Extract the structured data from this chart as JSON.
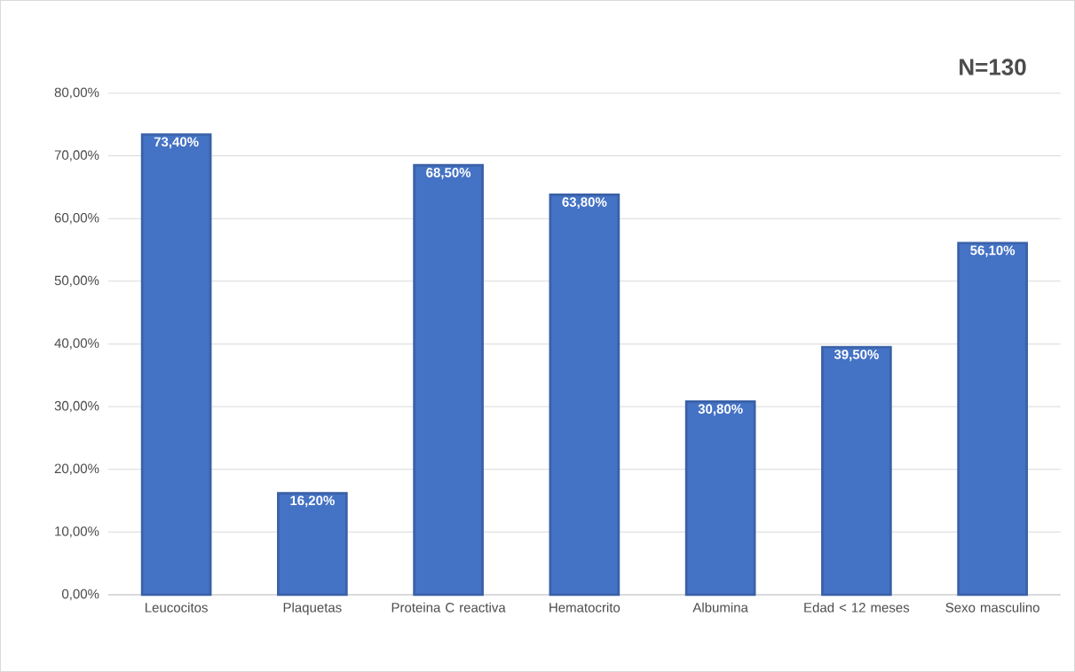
{
  "chart_data": {
    "type": "bar",
    "categories": [
      "Leucocitos",
      "Plaquetas",
      "Proteina C reactiva",
      "Hematocrito",
      "Albumina",
      "Edad < 12 meses",
      "Sexo masculino"
    ],
    "values": [
      73.4,
      16.2,
      68.5,
      63.8,
      30.8,
      39.5,
      56.1
    ],
    "value_labels": [
      "73,40%",
      "16,20%",
      "68,50%",
      "63,80%",
      "30,80%",
      "39,50%",
      "56,10%"
    ],
    "color": "#4472c4",
    "ylim": [
      0,
      80
    ],
    "yticks": [
      {
        "value": 0,
        "label": "0,00%"
      },
      {
        "value": 10,
        "label": "10,00%"
      },
      {
        "value": 20,
        "label": "20,00%"
      },
      {
        "value": 30,
        "label": "30,00%"
      },
      {
        "value": 40,
        "label": "40,00%"
      },
      {
        "value": 50,
        "label": "50,00%"
      },
      {
        "value": 60,
        "label": "60,00%"
      },
      {
        "value": 70,
        "label": "70,00%"
      },
      {
        "value": 80,
        "label": "80,00%"
      }
    ],
    "grid": "y",
    "annotations": [
      "N=130"
    ]
  }
}
